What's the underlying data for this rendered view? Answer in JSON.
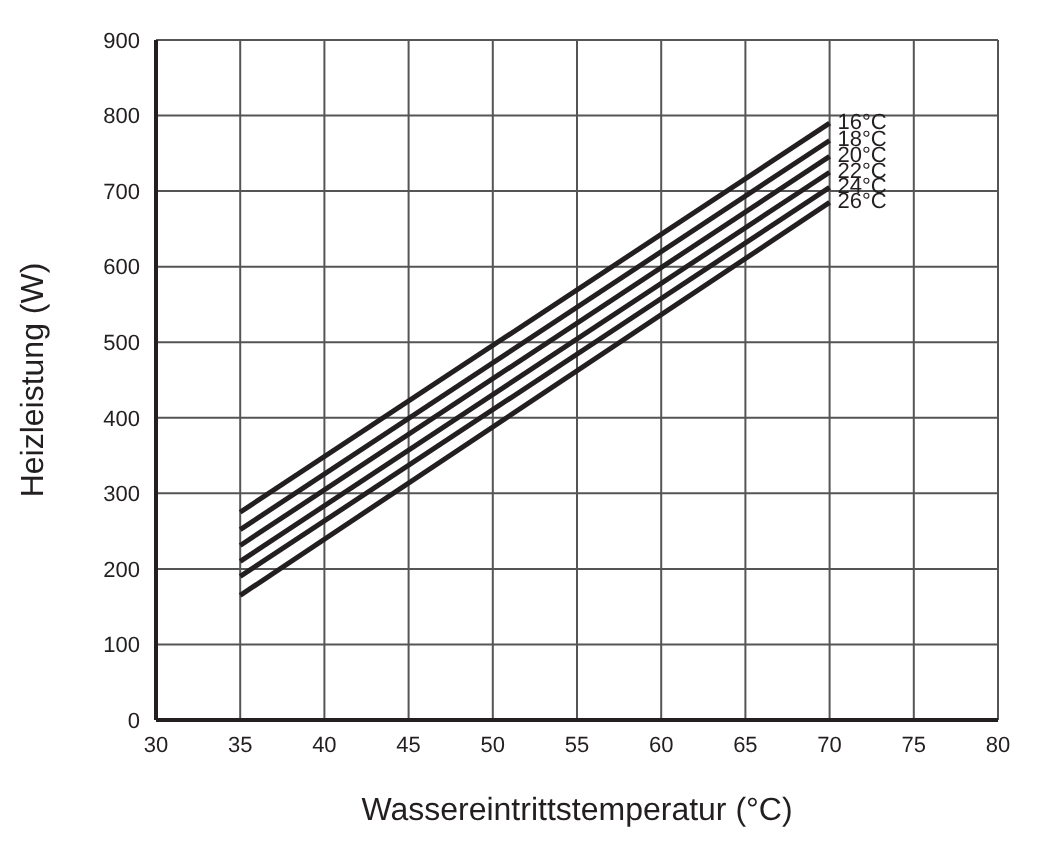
{
  "chart_data": {
    "type": "line",
    "xlabel": "Wassereintrittstemperatur  (°C)",
    "ylabel": "Heizleistung (W)",
    "xlim": [
      30,
      80
    ],
    "xticks": [
      30,
      35,
      40,
      45,
      50,
      55,
      60,
      65,
      70,
      75,
      80
    ],
    "ylim": [
      0,
      900
    ],
    "yticks": [
      0,
      100,
      200,
      300,
      400,
      500,
      600,
      700,
      800,
      900
    ],
    "grid": true,
    "legend": false,
    "marker": "none",
    "line_style": "solid",
    "x": [
      35,
      70
    ],
    "series": [
      {
        "name": "16°C",
        "color": "#231f20",
        "values": [
          275,
          790
        ]
      },
      {
        "name": "18°C",
        "color": "#231f20",
        "values": [
          252,
          767
        ]
      },
      {
        "name": "20°C",
        "color": "#231f20",
        "values": [
          231,
          746
        ]
      },
      {
        "name": "22°C",
        "color": "#231f20",
        "values": [
          210,
          725
        ]
      },
      {
        "name": "24°C",
        "color": "#231f20",
        "values": [
          190,
          705
        ]
      },
      {
        "name": "26°C",
        "color": "#231f20",
        "values": [
          165,
          685
        ]
      }
    ]
  }
}
